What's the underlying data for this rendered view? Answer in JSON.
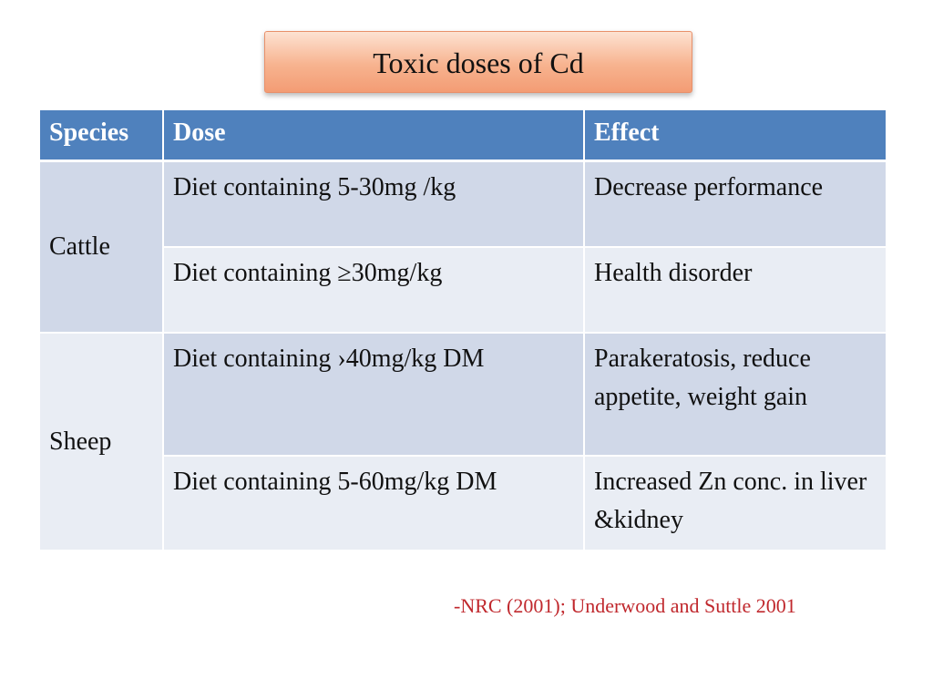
{
  "slide": {
    "title": "Toxic doses of Cd",
    "citation": "-NRC (2001); Underwood and Suttle 2001"
  },
  "table": {
    "headers": {
      "species": "Species",
      "dose": "Dose",
      "effect": "Effect"
    },
    "groups": [
      {
        "species": "Cattle",
        "rows": [
          {
            "dose": "Diet containing 5-30mg /kg",
            "effect": "Decrease performance"
          },
          {
            "dose": "Diet containing ≥30mg/kg",
            "effect": "Health disorder"
          }
        ]
      },
      {
        "species": "Sheep",
        "rows": [
          {
            "dose": "Diet containing ›40mg/kg DM",
            "effect": "Parakeratosis, reduce appetite, weight gain"
          },
          {
            "dose": "Diet containing 5-60mg/kg DM",
            "effect": "Increased Zn conc. in liver &kidney"
          }
        ]
      }
    ]
  },
  "colors": {
    "header_bg": "#4f81bd",
    "row_dark": "#d0d8e8",
    "row_light": "#e9edf4",
    "title_box": "#f7b38f",
    "citation": "#c0282d"
  }
}
